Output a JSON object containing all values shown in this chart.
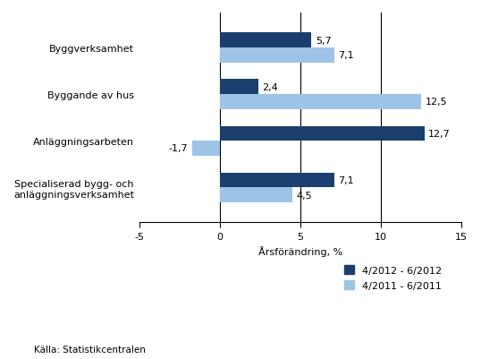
{
  "categories": [
    "Specialiserad bygg- och\nanläggningsverksamhet",
    "Anläggningsarbeten",
    "Byggande av hus",
    "Byggverksamhet"
  ],
  "series_2012": [
    7.1,
    12.7,
    2.4,
    5.7
  ],
  "series_2011": [
    4.5,
    -1.7,
    12.5,
    7.1
  ],
  "color_2012": "#1a3f6f",
  "color_2011": "#9dc3e6",
  "xlabel": "Årsförändring, %",
  "source": "Källa: Statistikcentralen",
  "legend_2012": "4/2012 - 6/2012",
  "legend_2011": "4/2011 - 6/2011",
  "xlim": [
    -5,
    15
  ],
  "xticks": [
    -5,
    0,
    5,
    10,
    15
  ],
  "bar_height": 0.32,
  "label_fontsize": 8,
  "tick_fontsize": 8,
  "vlines": [
    0,
    5,
    10
  ]
}
